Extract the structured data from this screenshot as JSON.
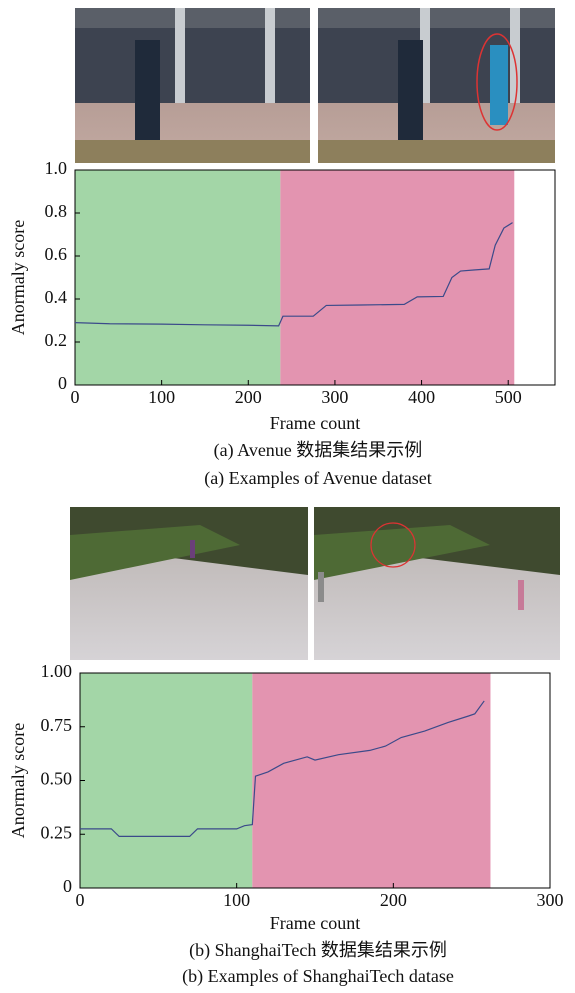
{
  "chart_data": [
    {
      "type": "line",
      "xlabel": "Frame count",
      "ylabel": "Anormaly score",
      "caption_zh": "(a) Avenue 数据集结果示例",
      "caption_en": "(a) Examples of Avenue dataset",
      "xlim": [
        0,
        554
      ],
      "ylim": [
        0,
        1
      ],
      "xticks": [
        0,
        100,
        200,
        300,
        400,
        500
      ],
      "yticks": [
        0,
        {
          "value": 0.2,
          "label": "0.2"
        },
        {
          "value": 0.4,
          "label": "0.4"
        },
        {
          "value": 0.6,
          "label": "0.6"
        },
        {
          "value": 0.8,
          "label": "0.8"
        },
        {
          "value": 1,
          "label": "1.0"
        }
      ],
      "regions": [
        {
          "from": 0,
          "to": 237,
          "color": "#a3d6a7"
        },
        {
          "from": 237,
          "to": 507,
          "color": "#e394b0"
        }
      ],
      "x": [
        0,
        40,
        100,
        150,
        200,
        235,
        240,
        275,
        290,
        330,
        380,
        395,
        425,
        435,
        445,
        460,
        478,
        485,
        495,
        505
      ],
      "series": [
        {
          "color": "#3b4a8a",
          "values": [
            0.29,
            0.285,
            0.283,
            0.28,
            0.278,
            0.275,
            0.32,
            0.32,
            0.37,
            0.372,
            0.375,
            0.41,
            0.412,
            0.5,
            0.53,
            0.535,
            0.54,
            0.65,
            0.73,
            0.755
          ]
        }
      ]
    },
    {
      "type": "line",
      "xlabel": "Frame count",
      "ylabel": "Anormaly score",
      "caption_zh": "(b) ShanghaiTech 数据集结果示例",
      "caption_en": "(b) Examples of ShanghaiTech datase",
      "xlim": [
        0,
        300
      ],
      "ylim": [
        0,
        1
      ],
      "xticks": [
        0,
        100,
        200,
        300
      ],
      "yticks": [
        0,
        {
          "value": 0.25,
          "label": "0.25"
        },
        {
          "value": 0.5,
          "label": "0.50"
        },
        {
          "value": 0.75,
          "label": "0.75"
        },
        {
          "value": 1,
          "label": "1.00"
        }
      ],
      "regions": [
        {
          "from": 0,
          "to": 110,
          "color": "#a3d6a7"
        },
        {
          "from": 110,
          "to": 262,
          "color": "#e394b0"
        }
      ],
      "x": [
        0,
        20,
        25,
        70,
        75,
        100,
        105,
        110,
        112,
        120,
        130,
        145,
        150,
        165,
        185,
        195,
        205,
        220,
        235,
        248,
        252,
        258
      ],
      "series": [
        {
          "color": "#3b4a8a",
          "values": [
            0.275,
            0.275,
            0.24,
            0.24,
            0.275,
            0.275,
            0.29,
            0.295,
            0.52,
            0.54,
            0.58,
            0.61,
            0.595,
            0.62,
            0.64,
            0.66,
            0.7,
            0.73,
            0.77,
            0.8,
            0.81,
            0.87
          ]
        }
      ]
    }
  ]
}
